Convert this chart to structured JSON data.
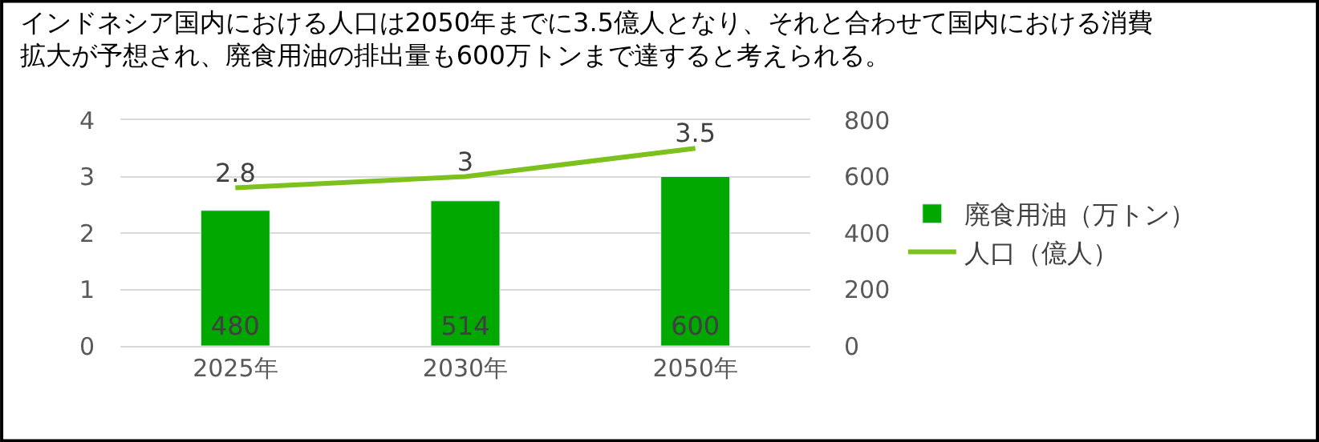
{
  "chart_data": {
    "type": "bar",
    "title": "インドネシア国内における人口は2050年までに3.5億人となり、それと合わせて国内における消費拡大が予想され、廃食用油の排出量も600万トンまで達すると考えられる。",
    "categories": [
      "2025年",
      "2030年",
      "2050年"
    ],
    "series": [
      {
        "name": "廃食用油（万トン）",
        "axis": "y2",
        "color": "#00a800",
        "values": [
          480,
          514,
          600
        ]
      },
      {
        "name": "人口（億人）",
        "type": "line",
        "axis": "y",
        "color": "#7dc11c",
        "values": [
          2.8,
          3,
          3.5
        ]
      }
    ],
    "ylim": [
      0,
      4
    ],
    "yticks": [
      0,
      1,
      2,
      3,
      4
    ],
    "y2lim": [
      0,
      800
    ],
    "y2ticks": [
      0,
      200,
      400,
      600,
      800
    ],
    "grid": "y",
    "legend": "right",
    "marker": "none",
    "line_style": "solid",
    "data_labels": true
  }
}
